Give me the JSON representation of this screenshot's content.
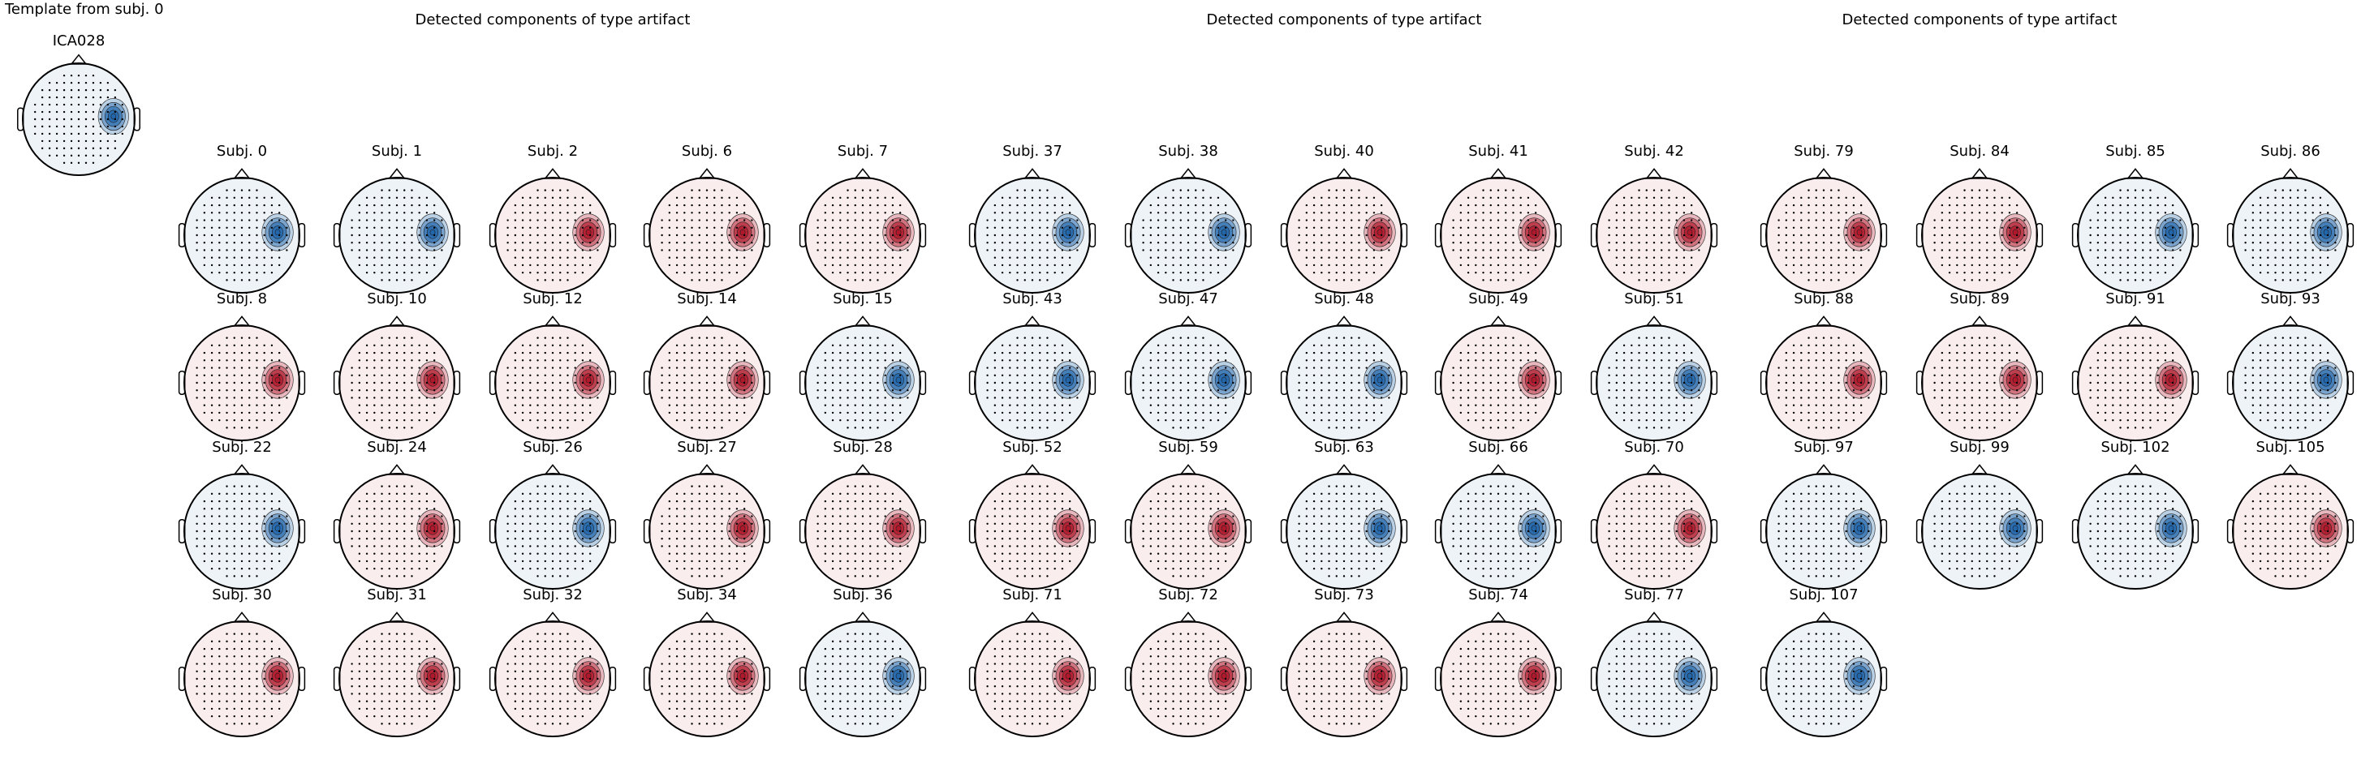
{
  "template": {
    "title": "Template from subj. 0",
    "label": "ICA028",
    "color": "#2166ac"
  },
  "panels": [
    {
      "title": "Detected components of type artifact",
      "rows": [
        [
          {
            "label": "Subj. 0",
            "color": "#2166ac"
          },
          {
            "label": "Subj. 1",
            "color": "#2166ac"
          },
          {
            "label": "Subj. 2",
            "color": "#b2182b"
          },
          {
            "label": "Subj. 6",
            "color": "#b2182b"
          },
          {
            "label": "Subj. 7",
            "color": "#b2182b"
          }
        ],
        [
          {
            "label": "Subj. 8",
            "color": "#b2182b"
          },
          {
            "label": "Subj. 10",
            "color": "#b2182b"
          },
          {
            "label": "Subj. 12",
            "color": "#b2182b"
          },
          {
            "label": "Subj. 14",
            "color": "#b2182b"
          },
          {
            "label": "Subj. 15",
            "color": "#2166ac"
          }
        ],
        [
          {
            "label": "Subj. 22",
            "color": "#2166ac"
          },
          {
            "label": "Subj. 24",
            "color": "#b2182b"
          },
          {
            "label": "Subj. 26",
            "color": "#2166ac"
          },
          {
            "label": "Subj. 27",
            "color": "#b2182b"
          },
          {
            "label": "Subj. 28",
            "color": "#b2182b"
          }
        ],
        [
          {
            "label": "Subj. 30",
            "color": "#b2182b"
          },
          {
            "label": "Subj. 31",
            "color": "#b2182b"
          },
          {
            "label": "Subj. 32",
            "color": "#b2182b"
          },
          {
            "label": "Subj. 34",
            "color": "#b2182b"
          },
          {
            "label": "Subj. 36",
            "color": "#2166ac"
          }
        ]
      ]
    },
    {
      "title": "Detected components of type artifact",
      "rows": [
        [
          {
            "label": "Subj. 37",
            "color": "#2166ac"
          },
          {
            "label": "Subj. 38",
            "color": "#2166ac"
          },
          {
            "label": "Subj. 40",
            "color": "#b2182b"
          },
          {
            "label": "Subj. 41",
            "color": "#b2182b"
          },
          {
            "label": "Subj. 42",
            "color": "#b2182b"
          }
        ],
        [
          {
            "label": "Subj. 43",
            "color": "#2166ac"
          },
          {
            "label": "Subj. 47",
            "color": "#2166ac"
          },
          {
            "label": "Subj. 48",
            "color": "#2166ac"
          },
          {
            "label": "Subj. 49",
            "color": "#b2182b"
          },
          {
            "label": "Subj. 51",
            "color": "#2166ac"
          }
        ],
        [
          {
            "label": "Subj. 52",
            "color": "#b2182b"
          },
          {
            "label": "Subj. 59",
            "color": "#b2182b"
          },
          {
            "label": "Subj. 63",
            "color": "#2166ac"
          },
          {
            "label": "Subj. 66",
            "color": "#2166ac"
          },
          {
            "label": "Subj. 70",
            "color": "#b2182b"
          }
        ],
        [
          {
            "label": "Subj. 71",
            "color": "#b2182b"
          },
          {
            "label": "Subj. 72",
            "color": "#b2182b"
          },
          {
            "label": "Subj. 73",
            "color": "#b2182b"
          },
          {
            "label": "Subj. 74",
            "color": "#b2182b"
          },
          {
            "label": "Subj. 77",
            "color": "#2166ac"
          }
        ]
      ]
    },
    {
      "title": "Detected components of type artifact",
      "rows": [
        [
          {
            "label": "Subj. 79",
            "color": "#b2182b"
          },
          {
            "label": "Subj. 84",
            "color": "#b2182b"
          },
          {
            "label": "Subj. 85",
            "color": "#2166ac"
          },
          {
            "label": "Subj. 86",
            "color": "#2166ac"
          }
        ],
        [
          {
            "label": "Subj. 88",
            "color": "#b2182b"
          },
          {
            "label": "Subj. 89",
            "color": "#b2182b"
          },
          {
            "label": "Subj. 91",
            "color": "#b2182b"
          },
          {
            "label": "Subj. 93",
            "color": "#2166ac"
          }
        ],
        [
          {
            "label": "Subj. 97",
            "color": "#2166ac"
          },
          {
            "label": "Subj. 99",
            "color": "#2166ac"
          },
          {
            "label": "Subj. 102",
            "color": "#2166ac"
          },
          {
            "label": "Subj. 105",
            "color": "#b2182b"
          }
        ],
        [
          {
            "label": "Subj. 107",
            "color": "#2166ac"
          }
        ]
      ]
    }
  ]
}
